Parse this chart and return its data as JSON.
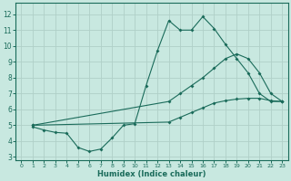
{
  "xlabel": "Humidex (Indice chaleur)",
  "xlim": [
    -0.5,
    23.5
  ],
  "ylim": [
    2.8,
    12.7
  ],
  "yticks": [
    3,
    4,
    5,
    6,
    7,
    8,
    9,
    10,
    11,
    12
  ],
  "xticks": [
    0,
    1,
    2,
    3,
    4,
    5,
    6,
    7,
    8,
    9,
    10,
    11,
    12,
    13,
    14,
    15,
    16,
    17,
    18,
    19,
    20,
    21,
    22,
    23
  ],
  "bg_color": "#c8e8e0",
  "line_color": "#1a6b5a",
  "grid_color": "#b0d0c8",
  "line1_x": [
    1,
    2,
    3,
    4,
    5,
    6,
    7,
    8,
    9,
    10,
    11,
    12,
    13,
    14,
    15,
    16,
    17,
    18,
    19,
    20,
    21,
    22,
    23
  ],
  "line1_y": [
    4.9,
    4.7,
    4.55,
    4.5,
    3.6,
    3.35,
    3.5,
    4.2,
    5.0,
    5.1,
    7.5,
    9.7,
    11.6,
    11.0,
    11.0,
    11.85,
    11.1,
    10.1,
    9.2,
    8.3,
    7.0,
    6.5,
    6.5
  ],
  "line2_x": [
    1,
    13,
    14,
    15,
    16,
    17,
    18,
    19,
    20,
    21,
    22,
    23
  ],
  "line2_y": [
    5.0,
    6.5,
    7.0,
    7.5,
    8.0,
    8.6,
    9.2,
    9.5,
    9.2,
    8.3,
    7.0,
    6.5
  ],
  "line3_x": [
    1,
    13,
    14,
    15,
    16,
    17,
    18,
    19,
    20,
    21,
    22,
    23
  ],
  "line3_y": [
    5.0,
    5.2,
    5.5,
    5.8,
    6.1,
    6.4,
    6.55,
    6.65,
    6.7,
    6.7,
    6.55,
    6.5
  ]
}
